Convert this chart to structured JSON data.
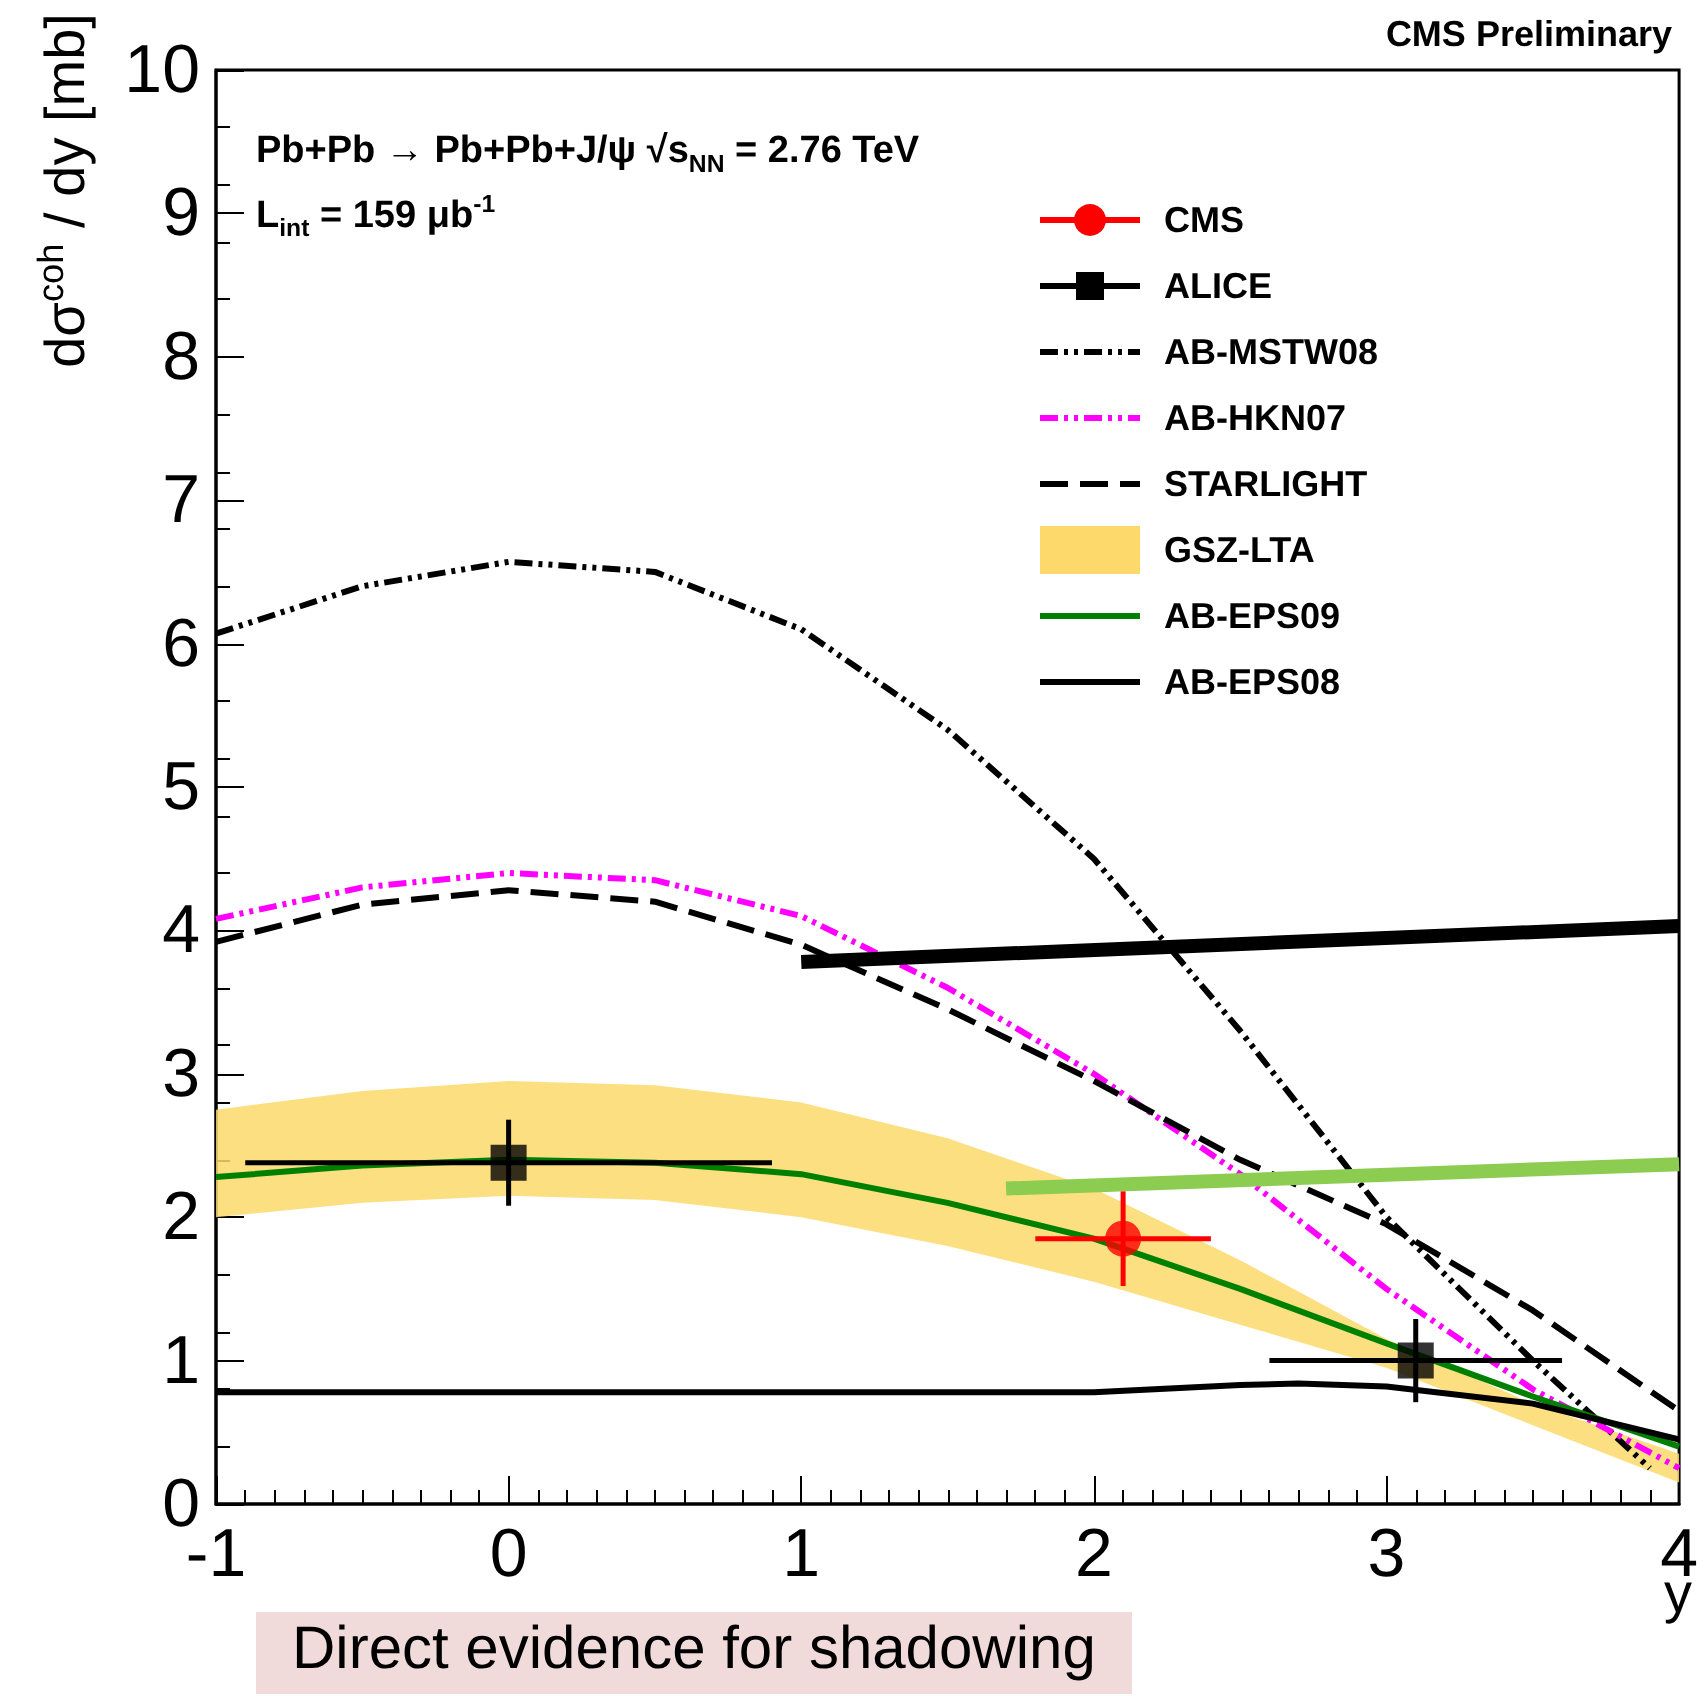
{
  "chart_data": {
    "type": "line",
    "xlabel": "y",
    "ylabel": "dσ$^{coh}$ / dy [mb]",
    "annotations": [
      "CMS Preliminary",
      "Pb+Pb → Pb+Pb+J/ψ  √s$_{NN}$ = 2.76 TeV",
      "L$_{int}$ = 159 μb$^{-1}$",
      "Direct evidence for shadowing"
    ],
    "xlim": [
      -1,
      4
    ],
    "xticks": [
      -1,
      0,
      1,
      2,
      3,
      4
    ],
    "ylim": [
      0,
      10
    ],
    "yticks": [
      0,
      1,
      2,
      3,
      4,
      5,
      6,
      7,
      8,
      9,
      10
    ],
    "grid": false,
    "legend": "top right",
    "series": [
      {
        "name": "CMS",
        "type": "scatter",
        "color": "#ff0000",
        "marker": "circle",
        "x": [
          2.1
        ],
        "values": [
          1.85
        ],
        "errors": [
          0.33
        ],
        "xerrors": [
          0.3
        ]
      },
      {
        "name": "ALICE",
        "type": "scatter",
        "color": "#000000",
        "marker": "square",
        "x": [
          0,
          3.1
        ],
        "values": [
          2.38,
          1.0
        ],
        "errors": [
          0.3,
          0.29
        ],
        "xerrors": [
          0.9,
          0.5
        ]
      },
      {
        "name": "AB-MSTW08",
        "color": "#000000",
        "line_style": "dotted",
        "x": [
          -1,
          -0.5,
          0,
          0.5,
          1,
          1.5,
          2,
          2.5,
          3,
          3.5,
          3.9
        ],
        "values": [
          6.07,
          6.4,
          6.57,
          6.5,
          6.1,
          5.4,
          4.5,
          3.3,
          2.0,
          1.0,
          0.25
        ]
      },
      {
        "name": "AB-HKN07",
        "color": "#ff00ff",
        "line_style": "dotted",
        "x": [
          -1,
          -0.5,
          0,
          0.5,
          1,
          1.5,
          2,
          2.5,
          3,
          3.5,
          4
        ],
        "values": [
          4.08,
          4.3,
          4.4,
          4.35,
          4.1,
          3.6,
          3.0,
          2.3,
          1.5,
          0.8,
          0.25
        ]
      },
      {
        "name": "STARLIGHT",
        "color": "#000000",
        "line_style": "dashed",
        "x": [
          -1,
          -0.5,
          0,
          0.5,
          1,
          1.5,
          2,
          2.5,
          3,
          3.5,
          4
        ],
        "values": [
          3.92,
          4.18,
          4.28,
          4.2,
          3.9,
          3.45,
          2.95,
          2.4,
          1.95,
          1.35,
          0.65
        ]
      },
      {
        "name": "GSZ-LTA",
        "type": "area",
        "color": "#fcd96a",
        "x": [
          -1,
          -0.5,
          0,
          0.5,
          1,
          1.5,
          2,
          2.5,
          3,
          3.5,
          4
        ],
        "values": [
          null,
          null,
          null,
          null,
          null,
          null,
          null,
          null,
          null,
          null,
          null
        ],
        "lower": [
          2.0,
          2.1,
          2.15,
          2.12,
          2.0,
          1.8,
          1.55,
          1.25,
          0.95,
          0.55,
          0.15
        ],
        "upper": [
          2.75,
          2.88,
          2.95,
          2.92,
          2.8,
          2.55,
          2.2,
          1.7,
          1.15,
          0.7,
          0.35
        ]
      },
      {
        "name": "AB-EPS09",
        "color": "#008000",
        "line_style": "solid",
        "x": [
          -1,
          -0.5,
          0,
          0.5,
          1,
          1.5,
          2,
          2.5,
          3,
          3.5,
          4
        ],
        "values": [
          2.28,
          2.36,
          2.4,
          2.38,
          2.3,
          2.1,
          1.85,
          1.5,
          1.12,
          0.75,
          0.4
        ]
      },
      {
        "name": "AB-EPS08",
        "color": "#000000",
        "line_style": "solid",
        "x": [
          -1,
          -0.5,
          0,
          0.5,
          1,
          1.5,
          2,
          2.5,
          2.7,
          3,
          3.5,
          4
        ],
        "values": [
          0.78,
          0.78,
          0.78,
          0.78,
          0.78,
          0.78,
          0.78,
          0.83,
          0.84,
          0.82,
          0.7,
          0.45
        ]
      },
      {
        "color": "#000000",
        "line_style": "solid",
        "x": [
          1.0,
          4.0
        ],
        "values": [
          3.78,
          4.03
        ]
      },
      {
        "color": "#8ccc50",
        "line_style": "solid",
        "x": [
          1.7,
          4.0
        ],
        "values": [
          2.2,
          2.37
        ]
      }
    ]
  }
}
